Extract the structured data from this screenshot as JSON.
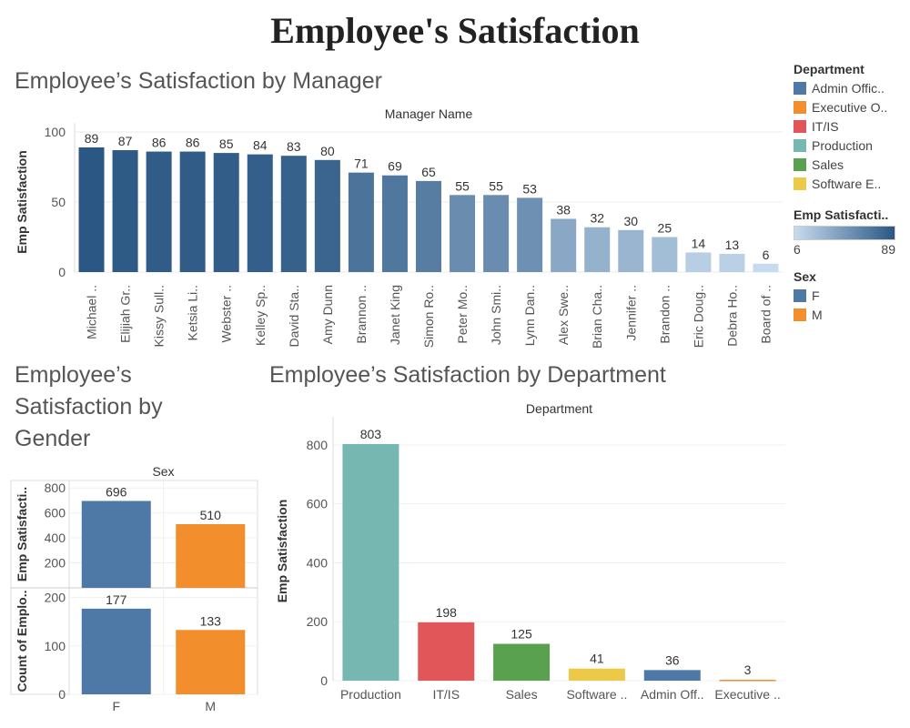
{
  "title": "Employee's Satisfaction",
  "colors": {
    "F": "#4e79a7",
    "M": "#f28e2b",
    "Admin Offices": "#4e79a7",
    "Executive Office": "#f28e2b",
    "IT/IS": "#e15759",
    "Production": "#76b7b2",
    "Sales": "#59a14f",
    "Software Engineering": "#edc948",
    "ramp_low": "#c6dbef",
    "ramp_high": "#2a5783"
  },
  "legend": {
    "department_title": "Department",
    "department_items": [
      "Admin Offic..",
      "Executive O..",
      "IT/IS",
      "Production",
      "Sales",
      "Software E.."
    ],
    "department_keys": [
      "Admin Offices",
      "Executive Office",
      "IT/IS",
      "Production",
      "Sales",
      "Software Engineering"
    ],
    "satisfaction_title": "Emp Satisfacti..",
    "satisfaction_min": "6",
    "satisfaction_max": "89",
    "sex_title": "Sex",
    "sex_items": [
      "F",
      "M"
    ]
  },
  "chart_data": [
    {
      "id": "manager",
      "type": "bar",
      "title": "Employee’s Satisfaction by Manager",
      "header": "Manager Name",
      "ylabel": "Emp Satisfaction",
      "ylim": [
        0,
        100
      ],
      "yticks": [
        0,
        50,
        100
      ],
      "categories": [
        "Michael ..",
        "Elijiah Gr..",
        "Kissy Sull..",
        "Ketsia Li..",
        "Webster ..",
        "Kelley Sp..",
        "David Sta..",
        "Amy Dunn",
        "Brannon ..",
        "Janet King",
        "Simon Ro..",
        "Peter Mo..",
        "John Smi..",
        "Lynn Dan..",
        "Alex Swe..",
        "Brian Cha..",
        "Jennifer ..",
        "Brandon ..",
        "Eric Doug..",
        "Debra Ho..",
        "Board of .."
      ],
      "values": [
        89,
        87,
        86,
        86,
        85,
        84,
        83,
        80,
        71,
        69,
        65,
        55,
        55,
        53,
        38,
        32,
        30,
        25,
        14,
        13,
        6
      ]
    },
    {
      "id": "gender",
      "type": "bar",
      "title": "Employee’s Satisfaction by Gender",
      "header": "Sex",
      "categories": [
        "F",
        "M"
      ],
      "panels": [
        {
          "ylabel": "Emp Satisfacti..",
          "ylim": [
            0,
            860
          ],
          "yticks": [
            200,
            400,
            600,
            800
          ],
          "values": [
            696,
            510
          ]
        },
        {
          "ylabel": "Count of Emplo..",
          "ylim": [
            0,
            220
          ],
          "yticks": [
            0,
            100,
            200
          ],
          "values": [
            177,
            133
          ]
        }
      ]
    },
    {
      "id": "department",
      "type": "bar",
      "title": "Employee’s Satisfaction by Department",
      "header": "Department",
      "ylabel": "Emp Satisfaction",
      "ylim": [
        0,
        880
      ],
      "yticks": [
        0,
        200,
        400,
        600,
        800
      ],
      "categories": [
        "Production",
        "IT/IS",
        "Sales",
        "Software ..",
        "Admin Off..",
        "Executive .."
      ],
      "color_keys": [
        "Production",
        "IT/IS",
        "Sales",
        "Software Engineering",
        "Admin Offices",
        "Executive Office"
      ],
      "values": [
        803,
        198,
        125,
        41,
        36,
        3
      ]
    }
  ]
}
